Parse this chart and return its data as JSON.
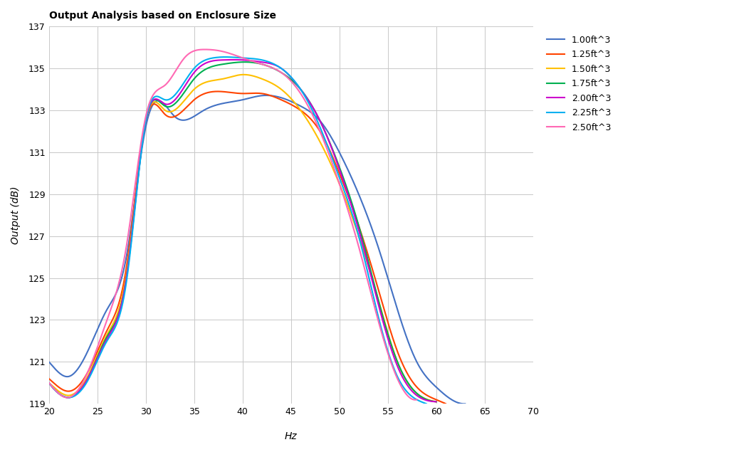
{
  "title": "Output Analysis based on Enclosure Size",
  "xlabel": "Hz",
  "ylabel": "Output (dB)",
  "xlim": [
    20,
    70
  ],
  "ylim": [
    119,
    137
  ],
  "xticks": [
    20,
    25,
    30,
    35,
    40,
    45,
    50,
    55,
    60,
    65,
    70
  ],
  "yticks": [
    119,
    121,
    123,
    125,
    127,
    129,
    131,
    133,
    135,
    137
  ],
  "series": [
    {
      "label": "1.00ft^3",
      "color": "#4472C4",
      "knots_x": [
        20,
        21,
        22,
        24,
        26,
        28,
        30,
        33,
        36,
        40,
        42,
        44,
        46,
        48,
        50,
        52,
        54,
        56,
        58,
        60,
        62,
        63
      ],
      "knots_y": [
        121.0,
        120.5,
        120.3,
        121.5,
        123.5,
        126.0,
        132.2,
        132.7,
        133.0,
        133.5,
        133.7,
        133.6,
        133.2,
        132.5,
        131.0,
        129.0,
        126.5,
        123.5,
        121.0,
        119.8,
        119.1,
        119.0
      ]
    },
    {
      "label": "1.25ft^3",
      "color": "#FF4400",
      "knots_x": [
        20,
        21,
        22,
        24,
        26,
        28,
        30,
        32,
        35,
        40,
        42,
        44,
        46,
        48,
        50,
        52,
        54,
        56,
        58,
        60,
        61
      ],
      "knots_y": [
        120.2,
        119.8,
        119.6,
        120.5,
        122.5,
        125.5,
        132.5,
        132.8,
        133.5,
        133.8,
        133.8,
        133.5,
        133.0,
        132.0,
        130.0,
        127.5,
        124.5,
        121.5,
        119.8,
        119.2,
        119.0
      ]
    },
    {
      "label": "1.50ft^3",
      "color": "#FFC000",
      "knots_x": [
        20,
        21,
        22,
        24,
        26,
        28,
        30,
        32,
        35,
        38,
        40,
        42,
        44,
        46,
        48,
        50,
        52,
        54,
        56,
        58,
        60
      ],
      "knots_y": [
        120.0,
        119.6,
        119.4,
        120.3,
        122.3,
        125.2,
        132.5,
        133.0,
        134.0,
        134.5,
        134.7,
        134.5,
        134.0,
        133.0,
        131.5,
        129.5,
        127.0,
        124.0,
        121.0,
        119.5,
        119.1
      ]
    },
    {
      "label": "1.75ft^3",
      "color": "#00B050",
      "knots_x": [
        20,
        21,
        22,
        24,
        26,
        28,
        30,
        32,
        35,
        38,
        40,
        42,
        44,
        46,
        48,
        50,
        52,
        54,
        56,
        58,
        60
      ],
      "knots_y": [
        120.0,
        119.5,
        119.3,
        120.2,
        122.2,
        125.0,
        132.5,
        133.2,
        134.5,
        135.2,
        135.3,
        135.2,
        134.8,
        134.0,
        132.5,
        130.3,
        127.5,
        124.0,
        121.0,
        119.5,
        119.1
      ]
    },
    {
      "label": "2.00ft^3",
      "color": "#CC00CC",
      "knots_x": [
        20,
        21,
        22,
        24,
        26,
        28,
        30,
        32,
        35,
        38,
        40,
        42,
        44,
        46,
        48,
        50,
        52,
        54,
        56,
        58,
        60
      ],
      "knots_y": [
        120.0,
        119.5,
        119.3,
        120.2,
        122.1,
        125.0,
        132.5,
        133.3,
        134.8,
        135.4,
        135.4,
        135.3,
        135.0,
        134.0,
        132.5,
        130.2,
        127.3,
        123.8,
        120.8,
        119.4,
        119.1
      ]
    },
    {
      "label": "2.25ft^3",
      "color": "#00B0F0",
      "knots_x": [
        20,
        21,
        22,
        24,
        26,
        28,
        30,
        32,
        35,
        37,
        40,
        42,
        44,
        46,
        48,
        50,
        52,
        54,
        56,
        58,
        59
      ],
      "knots_y": [
        120.0,
        119.5,
        119.3,
        120.1,
        122.0,
        124.8,
        132.5,
        133.5,
        135.0,
        135.5,
        135.5,
        135.4,
        135.0,
        134.0,
        132.2,
        129.8,
        127.0,
        123.2,
        120.3,
        119.2,
        119.0
      ]
    },
    {
      "label": "2.50ft^3",
      "color": "#FF69B4",
      "knots_x": [
        20,
        21,
        22,
        24,
        26,
        28,
        30,
        32,
        34,
        36,
        38,
        40,
        42,
        44,
        46,
        48,
        50,
        52,
        54,
        56,
        58
      ],
      "knots_y": [
        120.0,
        119.5,
        119.3,
        120.5,
        123.0,
        126.5,
        132.7,
        134.2,
        135.5,
        135.9,
        135.8,
        135.5,
        135.2,
        134.8,
        133.8,
        132.0,
        129.5,
        126.5,
        123.0,
        120.2,
        119.2
      ]
    }
  ],
  "background_color": "#FFFFFF",
  "grid_color": "#C8C8C8",
  "title_fontsize": 10,
  "label_fontsize": 10,
  "tick_fontsize": 9,
  "legend_fontsize": 9
}
